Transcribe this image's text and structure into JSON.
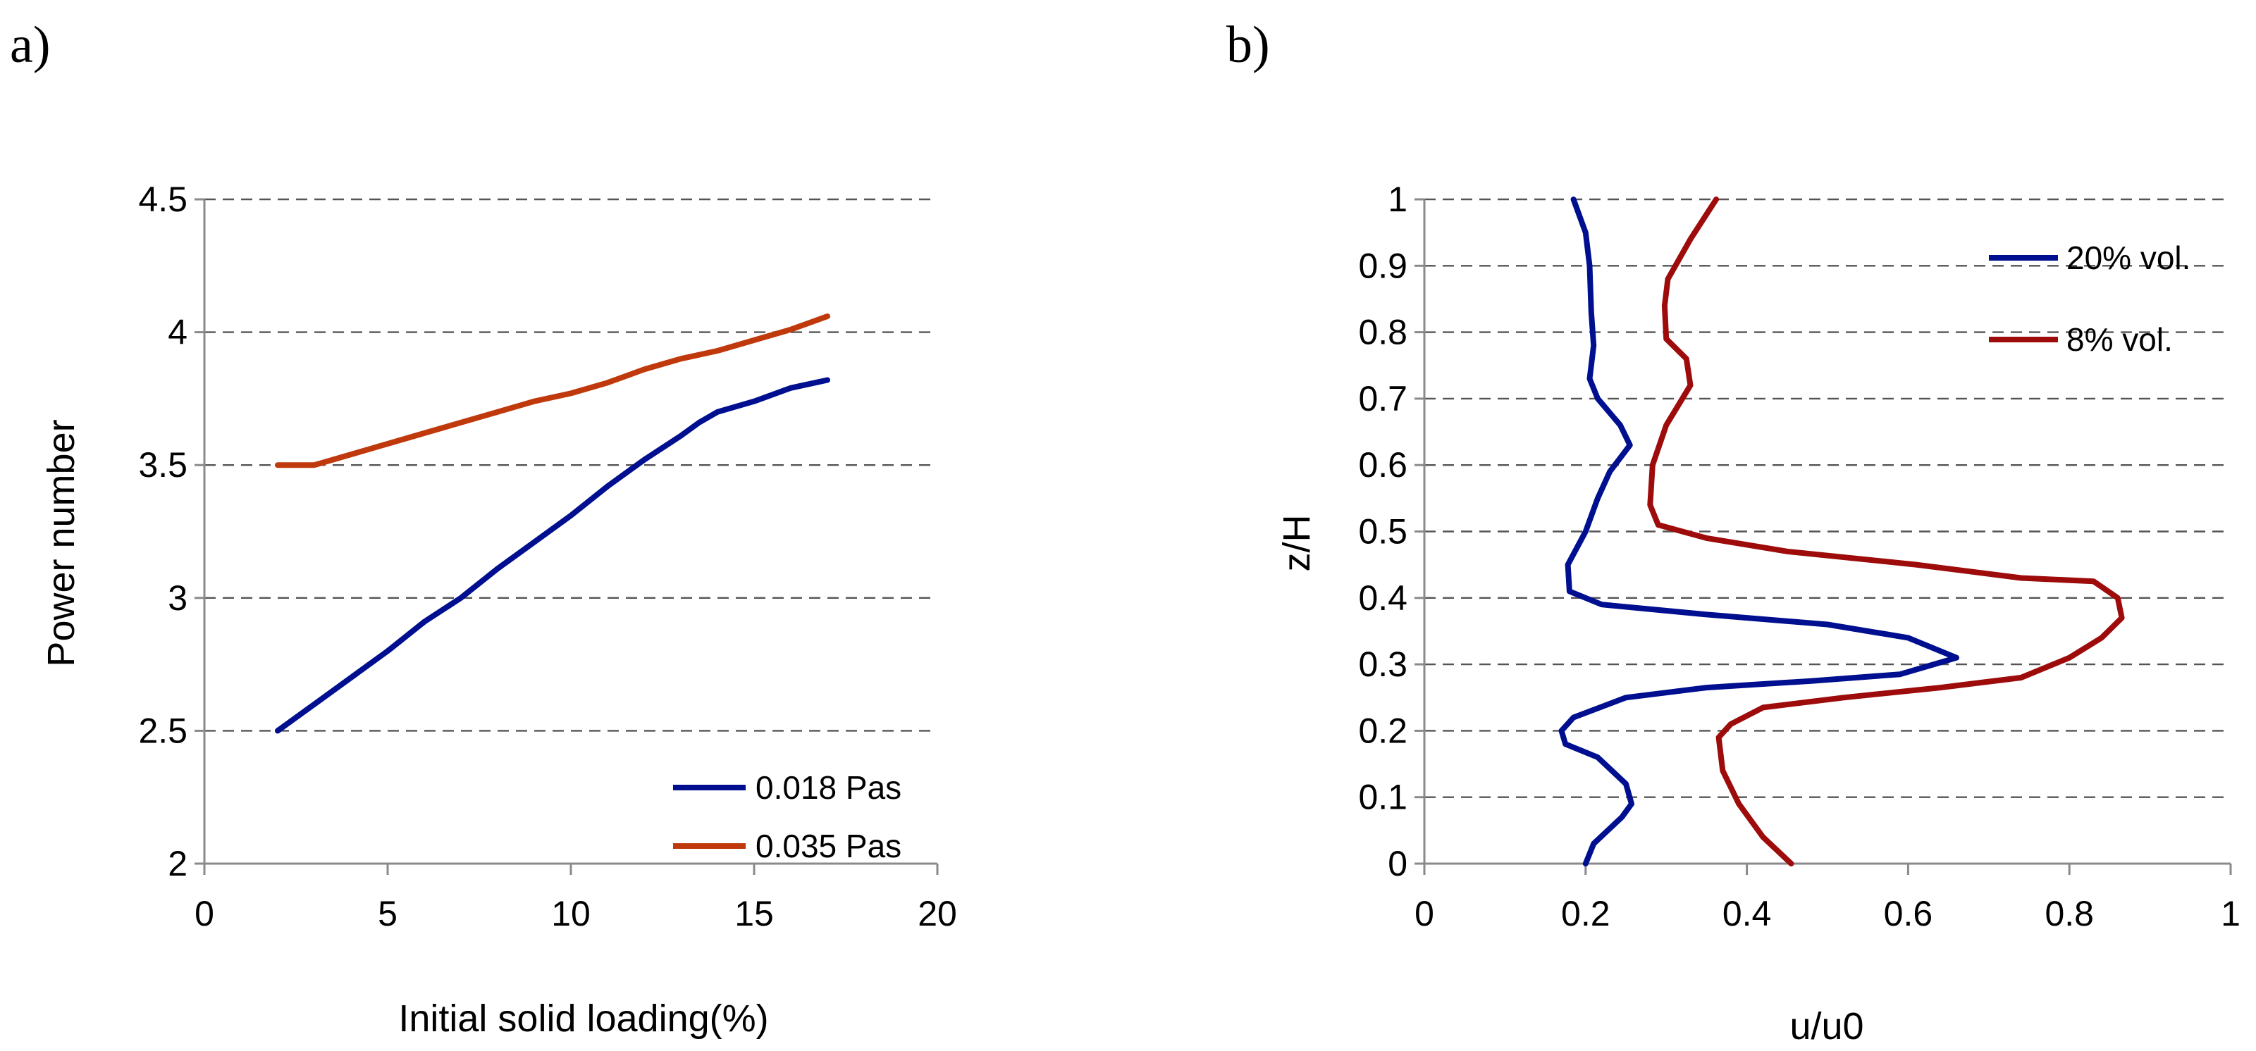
{
  "chart_data": [
    {
      "type": "line",
      "panel_label": "a)",
      "title": "",
      "xlabel": "Initial solid loading(%)",
      "ylabel": "Power number",
      "xlim": [
        0,
        20
      ],
      "ylim": [
        2,
        4.5
      ],
      "xticks": [
        0,
        5,
        10,
        15,
        20
      ],
      "yticks": [
        2,
        2.5,
        3,
        3.5,
        4,
        4.5
      ],
      "xtick_labels": [
        "0",
        "5",
        "10",
        "15",
        "20"
      ],
      "ytick_labels": [
        "2",
        "2.5",
        "3",
        "3.5",
        "4",
        "4.5"
      ],
      "grid": "horizontal dashed",
      "legend_position": "bottom-right",
      "series": [
        {
          "name": "0.018 Pas",
          "color": "#000f8f",
          "x": [
            2,
            3,
            4,
            5,
            6,
            7,
            8,
            9,
            10,
            11,
            12,
            13,
            13.5,
            14,
            15,
            16,
            17
          ],
          "y": [
            2.5,
            2.6,
            2.7,
            2.8,
            2.91,
            3.0,
            3.11,
            3.21,
            3.31,
            3.42,
            3.52,
            3.61,
            3.66,
            3.7,
            3.74,
            3.79,
            3.82
          ]
        },
        {
          "name": "0.035 Pas",
          "color": "#c0390c",
          "x": [
            2,
            3,
            4,
            5,
            6,
            7,
            8,
            9,
            10,
            11,
            12,
            13,
            14,
            15,
            16,
            17
          ],
          "y": [
            3.5,
            3.5,
            3.54,
            3.58,
            3.62,
            3.66,
            3.7,
            3.74,
            3.77,
            3.81,
            3.86,
            3.9,
            3.93,
            3.97,
            4.01,
            4.06
          ]
        }
      ]
    },
    {
      "type": "line",
      "panel_label": "b)",
      "title": "",
      "xlabel": "u/u0",
      "ylabel": "z/H",
      "xlim": [
        0,
        1
      ],
      "ylim": [
        0,
        1
      ],
      "xticks": [
        0,
        0.2,
        0.4,
        0.6,
        0.8,
        1
      ],
      "yticks": [
        0,
        0.1,
        0.2,
        0.3,
        0.4,
        0.5,
        0.6,
        0.7,
        0.8,
        0.9,
        1
      ],
      "xtick_labels": [
        "0",
        "0.2",
        "0.4",
        "0.6",
        "0.8",
        "1"
      ],
      "ytick_labels": [
        "0",
        "0.1",
        "0.2",
        "0.3",
        "0.4",
        "0.5",
        "0.6",
        "0.7",
        "0.8",
        "0.9",
        "1"
      ],
      "grid": "horizontal dashed",
      "legend_position": "top-right",
      "series": [
        {
          "name": "20% vol.",
          "color": "#000f8f",
          "u": [
            0.2,
            0.21,
            0.245,
            0.257,
            0.25,
            0.215,
            0.175,
            0.17,
            0.185,
            0.25,
            0.35,
            0.48,
            0.59,
            0.632,
            0.66,
            0.6,
            0.5,
            0.35,
            0.22,
            0.18,
            0.178,
            0.2,
            0.215,
            0.23,
            0.255,
            0.243,
            0.215,
            0.205,
            0.21,
            0.207,
            0.205,
            0.2,
            0.185
          ],
          "z": [
            0.0,
            0.03,
            0.07,
            0.09,
            0.12,
            0.16,
            0.18,
            0.2,
            0.22,
            0.25,
            0.265,
            0.275,
            0.285,
            0.3,
            0.31,
            0.34,
            0.36,
            0.375,
            0.39,
            0.41,
            0.45,
            0.5,
            0.55,
            0.59,
            0.63,
            0.66,
            0.7,
            0.73,
            0.78,
            0.83,
            0.9,
            0.95,
            1.0
          ]
        },
        {
          "name": "8% vol.",
          "color": "#9e0b0b",
          "u": [
            0.455,
            0.42,
            0.39,
            0.37,
            0.365,
            0.38,
            0.42,
            0.52,
            0.64,
            0.74,
            0.8,
            0.84,
            0.865,
            0.86,
            0.83,
            0.74,
            0.61,
            0.45,
            0.35,
            0.29,
            0.28,
            0.283,
            0.3,
            0.33,
            0.325,
            0.3,
            0.298,
            0.302,
            0.33,
            0.362
          ],
          "z": [
            0.0,
            0.04,
            0.09,
            0.14,
            0.19,
            0.21,
            0.235,
            0.25,
            0.265,
            0.28,
            0.31,
            0.34,
            0.37,
            0.4,
            0.425,
            0.43,
            0.45,
            0.47,
            0.49,
            0.51,
            0.54,
            0.6,
            0.66,
            0.72,
            0.76,
            0.79,
            0.84,
            0.88,
            0.94,
            1.0
          ]
        }
      ]
    }
  ]
}
